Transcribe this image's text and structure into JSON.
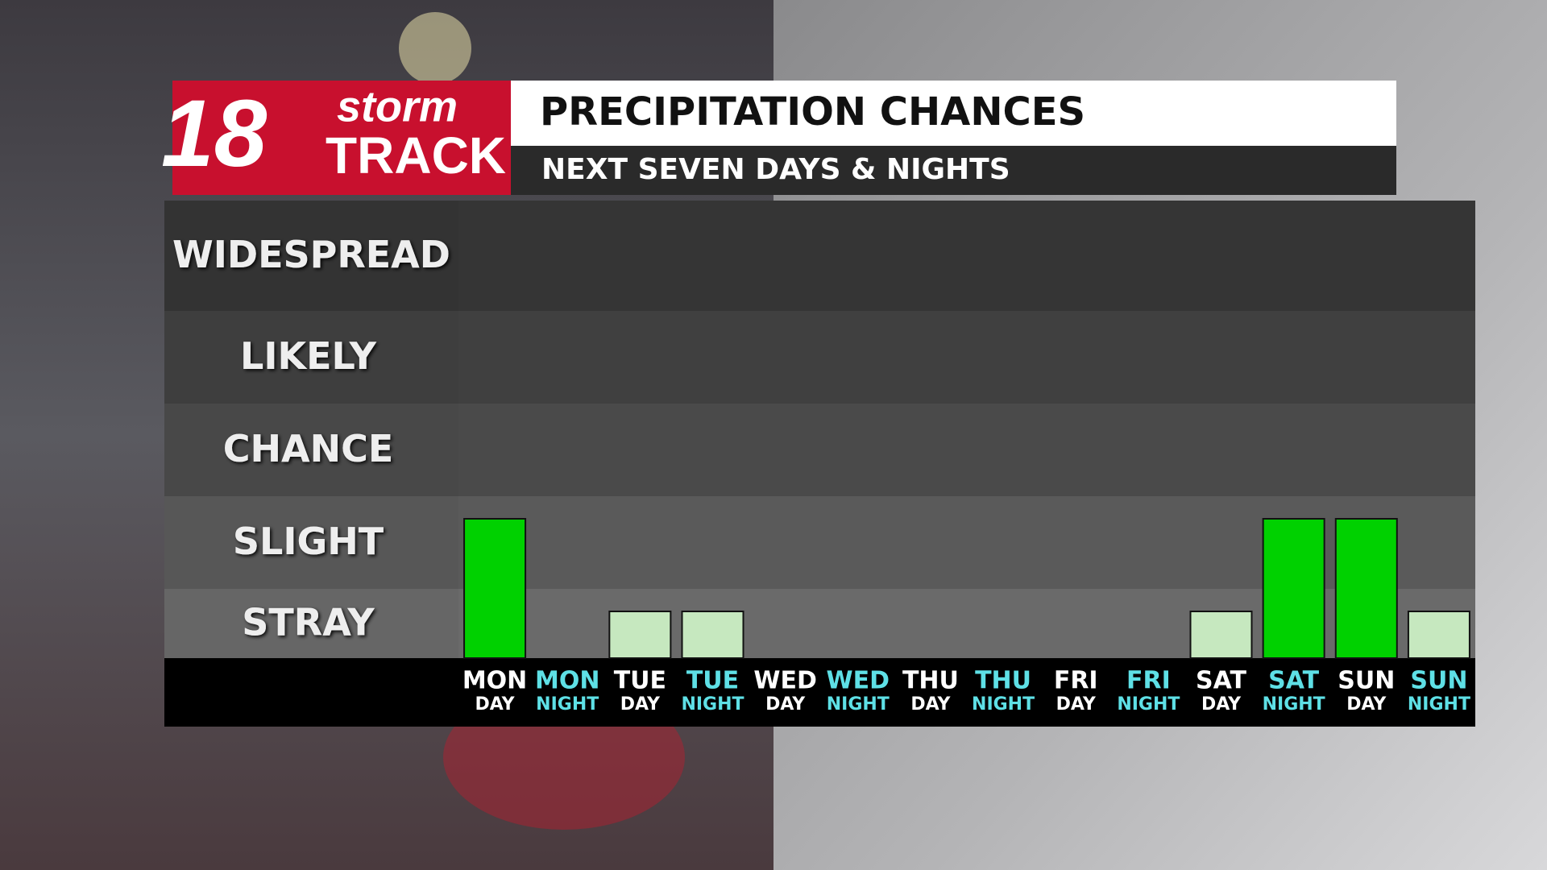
{
  "logo": {
    "number": "18",
    "line1": "storm",
    "line2": "TRACK"
  },
  "chart_data": {
    "type": "bar",
    "title": "PRECIPITATION CHANCES",
    "subtitle": "NEXT SEVEN DAYS & NIGHTS",
    "categories": [
      "MON",
      "MON",
      "TUE",
      "TUE",
      "WED",
      "WED",
      "THU",
      "THU",
      "FRI",
      "FRI",
      "SAT",
      "SAT",
      "SUN",
      "SUN"
    ],
    "periods": [
      "DAY",
      "NIGHT",
      "DAY",
      "NIGHT",
      "DAY",
      "NIGHT",
      "DAY",
      "NIGHT",
      "DAY",
      "NIGHT",
      "DAY",
      "NIGHT",
      "DAY",
      "NIGHT"
    ],
    "values": [
      2,
      0,
      1,
      1,
      0,
      0,
      0,
      0,
      0,
      0,
      1,
      2,
      2,
      1
    ],
    "ylim": [
      0,
      5
    ],
    "yticks": [
      {
        "value": 1,
        "label": "STRAY"
      },
      {
        "value": 2,
        "label": "SLIGHT"
      },
      {
        "value": 3,
        "label": "CHANCE"
      },
      {
        "value": 4,
        "label": "LIKELY"
      },
      {
        "value": 5,
        "label": "WIDESPREAD"
      }
    ],
    "level_colors": [
      "#c6e8bf",
      "#00d100"
    ],
    "period_colors": [
      "#ffffff",
      "#5ee0e6"
    ]
  }
}
